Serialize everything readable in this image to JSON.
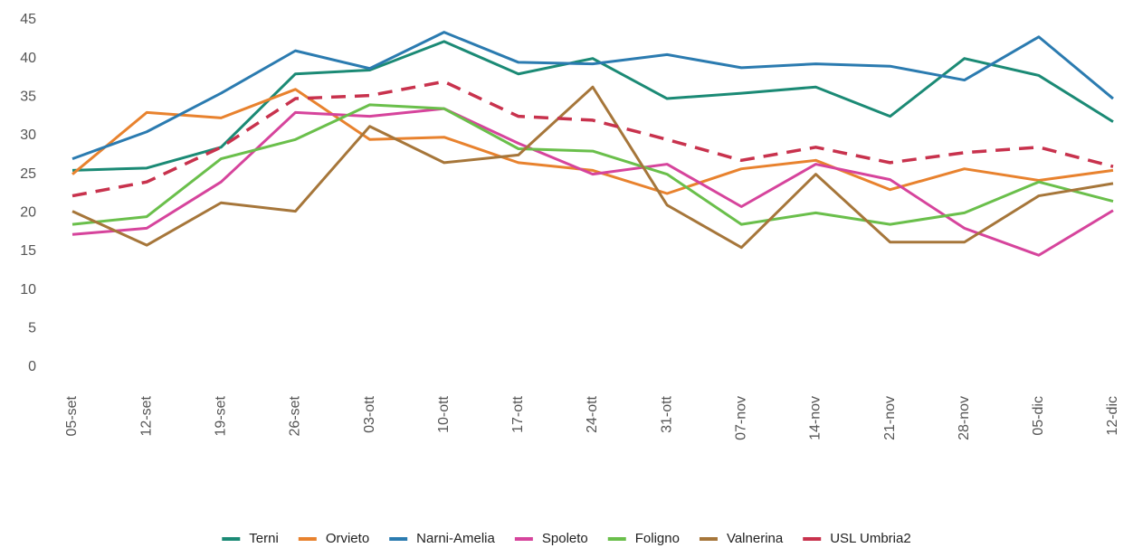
{
  "chart_data": {
    "type": "line",
    "categories": [
      "05-set",
      "12-set",
      "19-set",
      "26-set",
      "03-ott",
      "10-ott",
      "17-ott",
      "24-ott",
      "31-ott",
      "07-nov",
      "14-nov",
      "21-nov",
      "28-nov",
      "05-dic",
      "12-dic"
    ],
    "series": [
      {
        "name": "Terni",
        "color": "#1b8a75",
        "values": [
          25.5,
          25.8,
          28.5,
          38,
          38.5,
          42.2,
          38,
          40,
          34.8,
          35.5,
          36.3,
          32.5,
          40,
          37.8,
          31.8
        ]
      },
      {
        "name": "Orvieto",
        "color": "#e8822e",
        "values": [
          25,
          33,
          32.3,
          36,
          29.5,
          29.8,
          26.5,
          25.5,
          22.5,
          25.7,
          26.8,
          23,
          25.7,
          24.2,
          25.5
        ]
      },
      {
        "name": "Narni-Amelia",
        "color": "#2b7bb0",
        "values": [
          27,
          30.5,
          35.5,
          41,
          38.7,
          43.4,
          39.5,
          39.3,
          40.5,
          38.8,
          39.3,
          39,
          37.2,
          42.8,
          34.8
        ]
      },
      {
        "name": "Spoleto",
        "color": "#d6449c",
        "values": [
          17.2,
          18,
          24,
          33,
          32.5,
          33.5,
          29,
          25,
          26.3,
          20.8,
          26.3,
          24.3,
          18,
          14.5,
          20.3
        ]
      },
      {
        "name": "Foligno",
        "color": "#6abf4b",
        "values": [
          18.5,
          19.5,
          27,
          29.5,
          34,
          33.5,
          28.3,
          28,
          25,
          18.5,
          20,
          18.5,
          20,
          24,
          21.5
        ]
      },
      {
        "name": "Valnerina",
        "color": "#a6763a",
        "values": [
          20.2,
          15.8,
          21.3,
          20.2,
          31.2,
          26.5,
          27.5,
          36.3,
          21,
          15.5,
          25,
          16.2,
          16.2,
          22.2,
          23.8
        ]
      },
      {
        "name": "USL Umbria2",
        "color": "#c8324d",
        "dashed": true,
        "values": [
          22.2,
          24,
          28.5,
          34.8,
          35.2,
          37,
          32.5,
          32,
          29.5,
          26.8,
          28.5,
          26.5,
          27.8,
          28.5,
          26
        ]
      }
    ],
    "ylim": [
      0,
      45
    ],
    "yticks": [
      0,
      5,
      10,
      15,
      20,
      25,
      30,
      35,
      40,
      45
    ],
    "grid": false,
    "legend": "bottom"
  }
}
